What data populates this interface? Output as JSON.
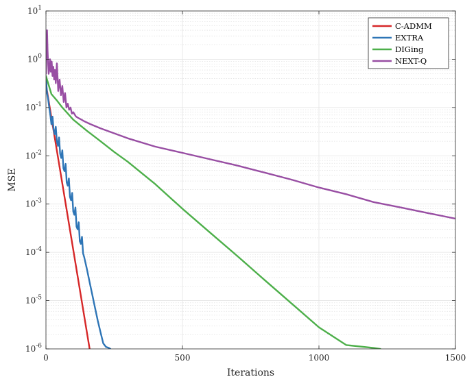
{
  "chart_data": {
    "type": "line",
    "title": "",
    "xlabel": "Iterations",
    "ylabel": "MSE",
    "xlim": [
      0,
      1500
    ],
    "ylim": [
      1e-06,
      10
    ],
    "yscale": "log",
    "x_ticks": [
      0,
      500,
      1000,
      1500
    ],
    "y_ticks": [
      {
        "value": 1e-06,
        "base": "10",
        "exp": "-6"
      },
      {
        "value": 1e-05,
        "base": "10",
        "exp": "-5"
      },
      {
        "value": 0.0001,
        "base": "10",
        "exp": "-4"
      },
      {
        "value": 0.001,
        "base": "10",
        "exp": "-3"
      },
      {
        "value": 0.01,
        "base": "10",
        "exp": "-2"
      },
      {
        "value": 0.1,
        "base": "10",
        "exp": "-1"
      },
      {
        "value": 1,
        "base": "10",
        "exp": "0"
      },
      {
        "value": 10,
        "base": "10",
        "exp": "1"
      }
    ],
    "grid": true,
    "minor_grid": true,
    "legend_position": "top-right",
    "series": [
      {
        "name": "C-ADMM",
        "color": "#d62728",
        "x": [
          0,
          160
        ],
        "y": [
          0.3,
          1e-06
        ]
      },
      {
        "name": "EXTRA",
        "color": "#2e75b6",
        "x": [
          0,
          4,
          8,
          12,
          16,
          20,
          24,
          28,
          32,
          36,
          40,
          44,
          48,
          52,
          56,
          60,
          64,
          68,
          72,
          76,
          80,
          84,
          88,
          92,
          96,
          100,
          104,
          108,
          112,
          116,
          120,
          124,
          128,
          132,
          136,
          140,
          150,
          160,
          170,
          180,
          190,
          200,
          210,
          220,
          230,
          236
        ],
        "y": [
          0.4,
          0.2,
          0.15,
          0.1,
          0.07,
          0.045,
          0.065,
          0.035,
          0.028,
          0.04,
          0.02,
          0.016,
          0.024,
          0.011,
          0.009,
          0.013,
          0.0055,
          0.0048,
          0.0068,
          0.0028,
          0.0024,
          0.0034,
          0.0014,
          0.0012,
          0.0017,
          0.0007,
          0.0006,
          0.00085,
          0.00034,
          0.0003,
          0.00042,
          0.00017,
          0.00015,
          0.00021,
          9.5e-05,
          8e-05,
          4.5e-05,
          2.4e-05,
          1.3e-05,
          7e-06,
          3.8e-06,
          2.2e-06,
          1.3e-06,
          1.1e-06,
          1.05e-06,
          1e-06
        ]
      },
      {
        "name": "DIGing",
        "color": "#4daf4a",
        "x": [
          0,
          20,
          40,
          60,
          80,
          100,
          150,
          200,
          250,
          300,
          400,
          500,
          600,
          700,
          800,
          900,
          1000,
          1100,
          1200,
          1225
        ],
        "y": [
          0.45,
          0.19,
          0.14,
          0.1,
          0.075,
          0.056,
          0.033,
          0.02,
          0.012,
          0.0075,
          0.0026,
          0.0008,
          0.00026,
          8.5e-05,
          2.7e-05,
          8.7e-06,
          2.8e-06,
          1.2e-06,
          1.05e-06,
          1e-06
        ]
      },
      {
        "name": "NEXT-Q",
        "color": "#984ea3",
        "x": [
          0,
          2,
          4,
          6,
          8,
          10,
          12,
          15,
          18,
          21,
          24,
          27,
          30,
          33,
          36,
          40,
          45,
          50,
          55,
          60,
          65,
          70,
          75,
          80,
          85,
          90,
          95,
          100,
          110,
          120,
          130,
          140,
          160,
          200,
          300,
          400,
          500,
          600,
          700,
          800,
          900,
          1000,
          1100,
          1200,
          1300,
          1400,
          1500
        ],
        "y": [
          0.5,
          2.5,
          4.0,
          1.5,
          0.8,
          0.5,
          0.6,
          1.0,
          0.55,
          0.9,
          0.45,
          0.7,
          0.38,
          0.6,
          0.32,
          0.82,
          0.22,
          0.38,
          0.18,
          0.28,
          0.13,
          0.2,
          0.1,
          0.12,
          0.09,
          0.1,
          0.075,
          0.08,
          0.065,
          0.06,
          0.056,
          0.052,
          0.046,
          0.037,
          0.023,
          0.0155,
          0.0115,
          0.0085,
          0.0063,
          0.0045,
          0.0032,
          0.0022,
          0.0016,
          0.0011,
          0.00085,
          0.00065,
          0.0005
        ]
      }
    ]
  }
}
